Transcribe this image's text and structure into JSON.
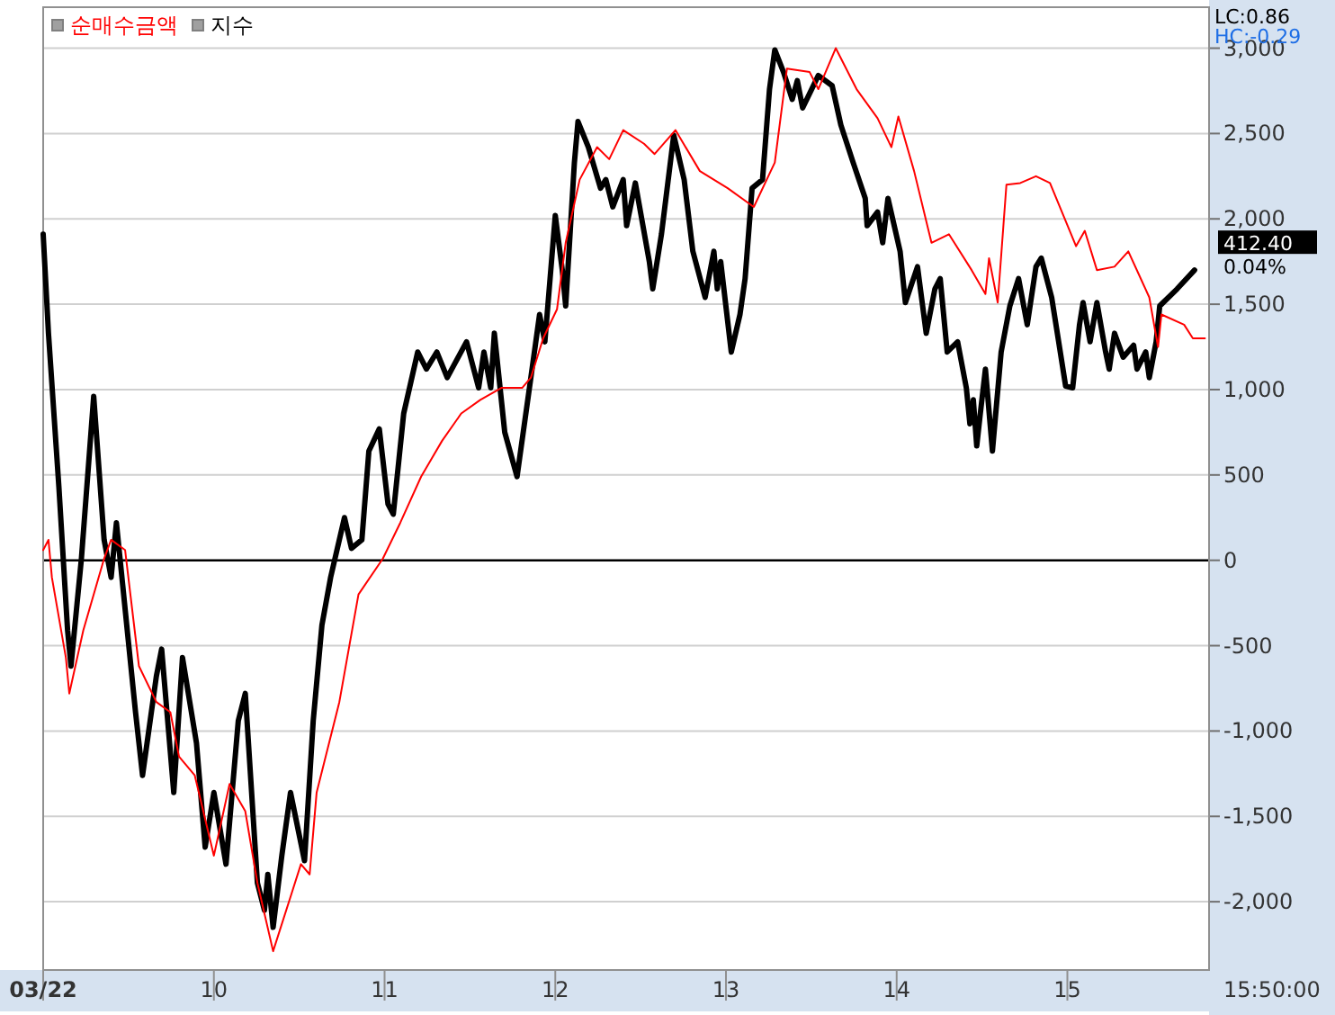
{
  "chart_data": {
    "type": "line",
    "legend": "top left",
    "grid": "y",
    "line_style": "solid",
    "marker": "none",
    "xlim": [
      9,
      15.83
    ],
    "xticks": [
      {
        "value": 9,
        "label": "03/22"
      },
      10,
      11,
      12,
      13,
      14,
      15
    ],
    "ylim": [
      -2400,
      3240
    ],
    "yticks": [
      {
        "value": -2000,
        "label": "-2,000"
      },
      {
        "value": -1500,
        "label": "-1,500"
      },
      {
        "value": -1000,
        "label": "-1,000"
      },
      -500,
      0,
      500,
      {
        "value": 1000,
        "label": "1,000"
      },
      {
        "value": 1500,
        "label": "1,500"
      },
      {
        "value": 2000,
        "label": "2,000"
      },
      {
        "value": 2500,
        "label": "2,500"
      },
      {
        "value": 3000,
        "label": "3,000"
      }
    ],
    "ref_lines": [
      {
        "axis": "y",
        "value": 0,
        "color": "#000000"
      }
    ],
    "annotations": [
      "LC:0.86",
      "HC:-0.29",
      "412.40",
      "0.04%",
      "15:50:00"
    ],
    "series": [
      {
        "name": "순매수금액",
        "color": "#ff0000",
        "x": [
          9.0,
          9.031,
          9.051,
          9.133,
          9.153,
          9.235,
          9.357,
          9.398,
          9.48,
          9.561,
          9.663,
          9.745,
          9.796,
          9.888,
          10.0,
          10.092,
          10.184,
          10.255,
          10.347,
          10.459,
          10.51,
          10.561,
          10.602,
          10.735,
          10.847,
          10.99,
          11.092,
          11.214,
          11.337,
          11.449,
          11.561,
          11.684,
          11.806,
          11.857,
          11.929,
          12.01,
          12.061,
          12.143,
          12.245,
          12.316,
          12.398,
          12.52,
          12.582,
          12.704,
          12.847,
          13.01,
          13.163,
          13.286,
          13.357,
          13.49,
          13.541,
          13.643,
          13.765,
          13.888,
          13.969,
          14.01,
          14.102,
          14.204,
          14.306,
          14.439,
          14.52,
          14.541,
          14.592,
          14.643,
          14.724,
          14.816,
          14.898,
          15.051,
          15.102,
          15.173,
          15.276,
          15.357,
          15.48,
          15.531,
          15.551,
          15.684,
          15.735,
          15.806
        ],
        "values": [
          60,
          120,
          -100,
          -570,
          -780,
          -410,
          10,
          120,
          60,
          -620,
          -830,
          -890,
          -1150,
          -1260,
          -1730,
          -1310,
          -1470,
          -1890,
          -2290,
          -1940,
          -1780,
          -1840,
          -1360,
          -830,
          -200,
          10,
          220,
          490,
          700,
          860,
          940,
          1010,
          1010,
          1070,
          1300,
          1470,
          1860,
          2230,
          2420,
          2350,
          2520,
          2440,
          2380,
          2520,
          2280,
          2180,
          2070,
          2330,
          2880,
          2860,
          2760,
          3000,
          2760,
          2590,
          2420,
          2600,
          2280,
          1860,
          1910,
          1700,
          1560,
          1770,
          1510,
          2200,
          2210,
          2250,
          2210,
          1840,
          1930,
          1700,
          1720,
          1810,
          1540,
          1250,
          1440,
          1380,
          1300,
          1300
        ]
      },
      {
        "name": "지수",
        "color": "#000000",
        "x": [
          9.0,
          9.031,
          9.092,
          9.143,
          9.163,
          9.224,
          9.296,
          9.357,
          9.398,
          9.429,
          9.541,
          9.582,
          9.663,
          9.694,
          9.765,
          9.816,
          9.898,
          9.949,
          10.0,
          10.071,
          10.143,
          10.184,
          10.255,
          10.296,
          10.316,
          10.347,
          10.398,
          10.449,
          10.531,
          10.582,
          10.633,
          10.684,
          10.765,
          10.806,
          10.867,
          10.908,
          10.969,
          11.02,
          11.051,
          11.112,
          11.194,
          11.245,
          11.306,
          11.367,
          11.48,
          11.551,
          11.582,
          11.622,
          11.643,
          11.704,
          11.776,
          11.857,
          11.908,
          11.939,
          12.0,
          12.041,
          12.061,
          12.112,
          12.133,
          12.194,
          12.265,
          12.296,
          12.337,
          12.398,
          12.418,
          12.469,
          12.551,
          12.571,
          12.622,
          12.694,
          12.755,
          12.806,
          12.878,
          12.929,
          12.949,
          12.969,
          13.031,
          13.082,
          13.112,
          13.153,
          13.214,
          13.255,
          13.286,
          13.337,
          13.388,
          13.418,
          13.449,
          13.541,
          13.622,
          13.673,
          13.745,
          13.816,
          13.827,
          13.888,
          13.918,
          13.949,
          14.02,
          14.051,
          14.122,
          14.173,
          14.224,
          14.255,
          14.296,
          14.357,
          14.408,
          14.429,
          14.449,
          14.469,
          14.49,
          14.52,
          14.561,
          14.612,
          14.663,
          14.714,
          14.765,
          14.816,
          14.847,
          14.908,
          14.949,
          14.99,
          15.031,
          15.071,
          15.092,
          15.133,
          15.173,
          15.224,
          15.245,
          15.276,
          15.327,
          15.388,
          15.408,
          15.459,
          15.48,
          15.52,
          15.541,
          15.643,
          15.745
        ],
        "values": [
          1910,
          1330,
          430,
          -410,
          -620,
          10,
          960,
          120,
          -100,
          220,
          -890,
          -1260,
          -680,
          -520,
          -1360,
          -570,
          -1070,
          -1680,
          -1360,
          -1780,
          -940,
          -780,
          -1890,
          -2050,
          -1840,
          -2150,
          -1730,
          -1360,
          -1760,
          -940,
          -380,
          -100,
          250,
          70,
          120,
          640,
          770,
          330,
          270,
          860,
          1220,
          1120,
          1220,
          1070,
          1280,
          1010,
          1220,
          1010,
          1330,
          750,
          490,
          1070,
          1440,
          1280,
          2020,
          1700,
          1490,
          2330,
          2570,
          2420,
          2180,
          2230,
          2070,
          2230,
          1960,
          2210,
          1750,
          1590,
          1910,
          2490,
          2230,
          1810,
          1540,
          1810,
          1590,
          1750,
          1220,
          1440,
          1650,
          2180,
          2230,
          2760,
          2990,
          2860,
          2700,
          2810,
          2650,
          2840,
          2780,
          2550,
          2330,
          2120,
          1960,
          2040,
          1860,
          2120,
          1810,
          1510,
          1720,
          1330,
          1590,
          1650,
          1220,
          1280,
          1010,
          800,
          940,
          670,
          860,
          1120,
          640,
          1220,
          1490,
          1650,
          1380,
          1720,
          1770,
          1540,
          1280,
          1020,
          1010,
          1380,
          1510,
          1280,
          1510,
          1220,
          1120,
          1330,
          1190,
          1260,
          1120,
          1220,
          1070,
          1280,
          1490,
          1590,
          1700
        ]
      }
    ]
  }
}
